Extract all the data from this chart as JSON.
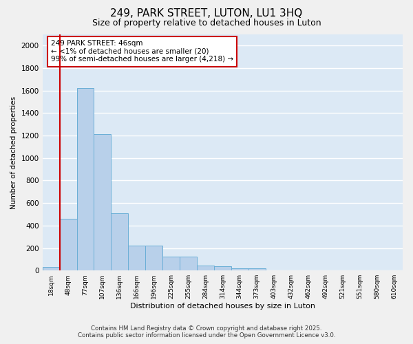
{
  "title1": "249, PARK STREET, LUTON, LU1 3HQ",
  "title2": "Size of property relative to detached houses in Luton",
  "xlabel": "Distribution of detached houses by size in Luton",
  "ylabel": "Number of detached properties",
  "categories": [
    "18sqm",
    "48sqm",
    "77sqm",
    "107sqm",
    "136sqm",
    "166sqm",
    "196sqm",
    "225sqm",
    "255sqm",
    "284sqm",
    "314sqm",
    "344sqm",
    "373sqm",
    "403sqm",
    "432sqm",
    "462sqm",
    "492sqm",
    "521sqm",
    "551sqm",
    "580sqm",
    "610sqm"
  ],
  "values": [
    30,
    460,
    1620,
    1210,
    510,
    220,
    220,
    125,
    125,
    45,
    40,
    20,
    20,
    0,
    0,
    0,
    0,
    0,
    0,
    0,
    0
  ],
  "bar_color": "#b8d0ea",
  "bar_edge_color": "#6aaed6",
  "vline_color": "#cc0000",
  "vline_x": 0.5,
  "annotation_text": "249 PARK STREET: 46sqm\n← <1% of detached houses are smaller (20)\n99% of semi-detached houses are larger (4,218) →",
  "annotation_box_color": "#ffffff",
  "annotation_box_edge": "#cc0000",
  "plot_bg_color": "#dce9f5",
  "fig_bg_color": "#f0f0f0",
  "grid_color": "#ffffff",
  "ylim": [
    0,
    2100
  ],
  "yticks": [
    0,
    200,
    400,
    600,
    800,
    1000,
    1200,
    1400,
    1600,
    1800,
    2000
  ],
  "footer1": "Contains HM Land Registry data © Crown copyright and database right 2025.",
  "footer2": "Contains public sector information licensed under the Open Government Licence v3.0."
}
